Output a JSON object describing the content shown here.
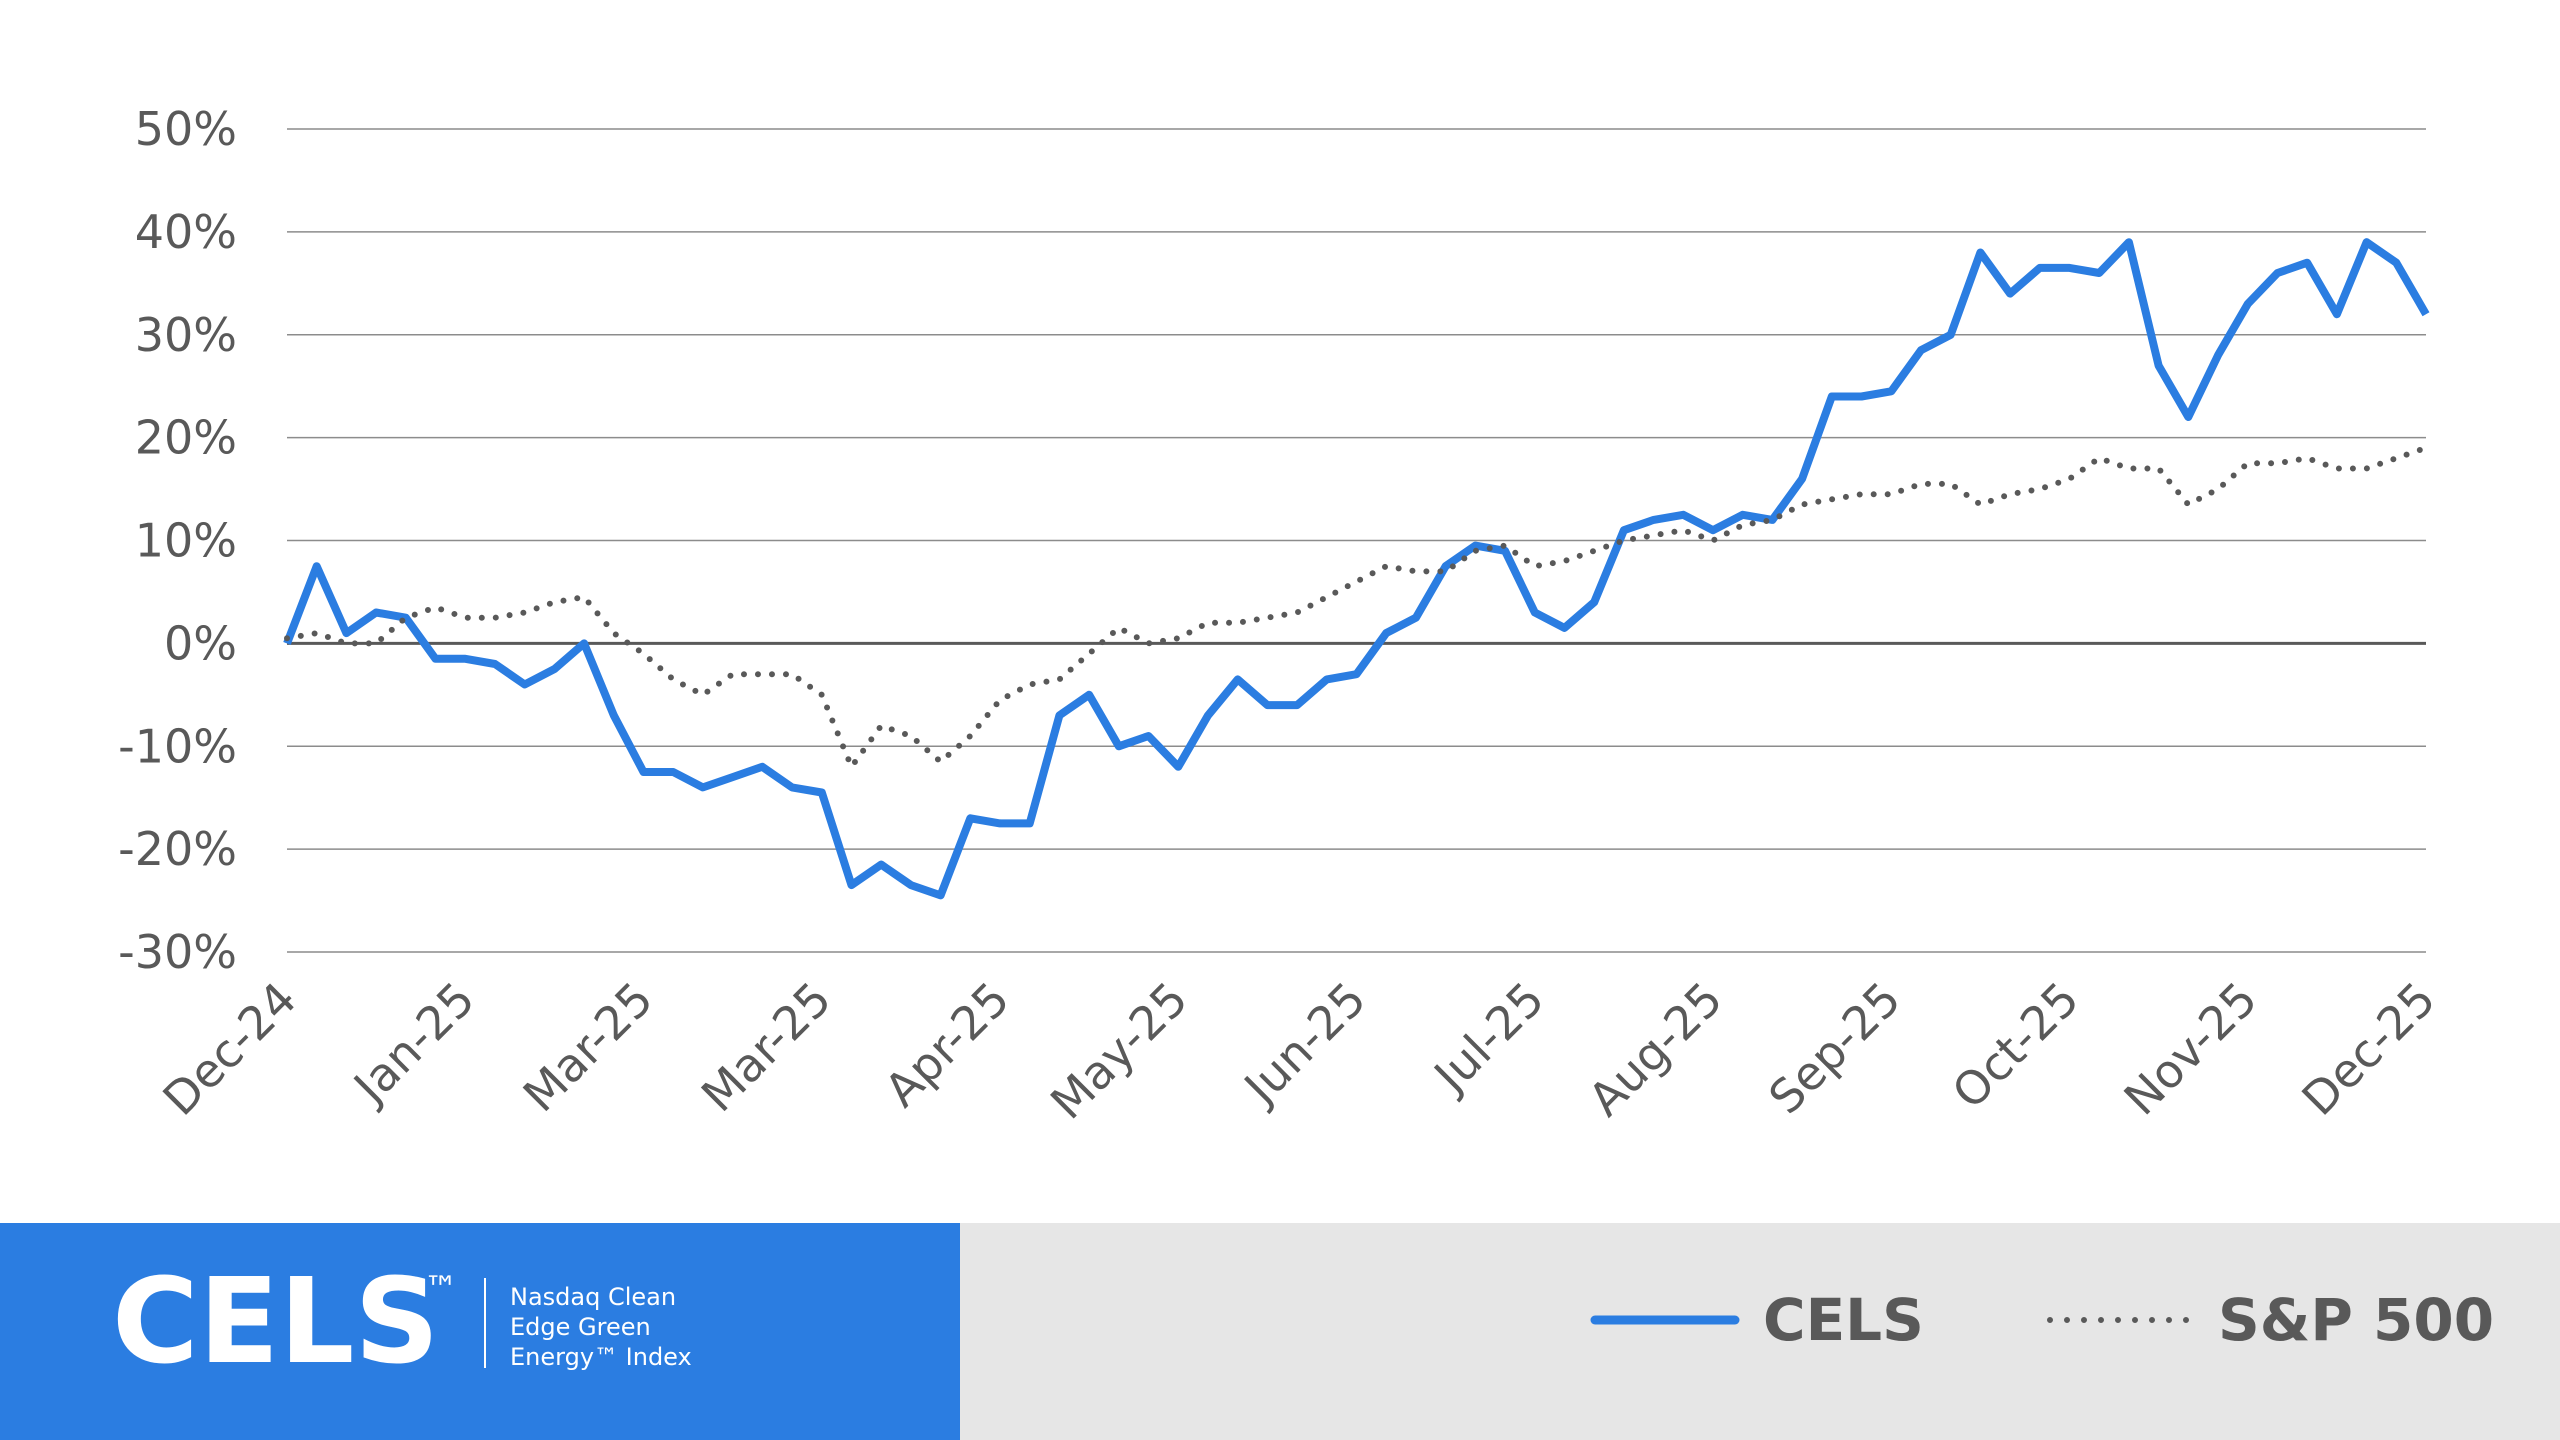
{
  "chart_data": {
    "type": "line",
    "categories": [
      "Dec-24",
      null,
      null,
      null,
      null,
      null,
      "Jan-25",
      null,
      null,
      null,
      null,
      null,
      "Mar-25",
      null,
      null,
      null,
      null,
      null,
      "Mar-25",
      null,
      null,
      null,
      null,
      null,
      "Apr-25",
      null,
      null,
      null,
      null,
      null,
      "May-25",
      null,
      null,
      null,
      null,
      null,
      "Jun-25",
      null,
      null,
      null,
      null,
      null,
      "Jul-25",
      null,
      null,
      null,
      null,
      null,
      "Aug-25",
      null,
      null,
      null,
      null,
      null,
      "Sep-25",
      null,
      null,
      null,
      null,
      null,
      "Oct-25",
      null,
      null,
      null,
      null,
      null,
      "Nov-25",
      null,
      null,
      null,
      null,
      null,
      "Dec-25"
    ],
    "series": [
      {
        "name": "CELS",
        "color": "#2b7de1",
        "style": "solid",
        "values": [
          0,
          7.5,
          1,
          3,
          2.5,
          -1.5,
          -1.5,
          -2,
          -4,
          -2.5,
          0,
          -7,
          -12.5,
          -12.5,
          -14,
          -13,
          -12,
          -14,
          -14.5,
          -23.5,
          -21.5,
          -23.5,
          -24.5,
          -17,
          -17.5,
          -17.5,
          -7,
          -5,
          -10,
          -9,
          -12,
          -7,
          -3.5,
          -6,
          -6,
          -3.5,
          -3,
          1,
          2.5,
          7.5,
          9.5,
          9,
          3,
          1.5,
          4,
          11,
          12,
          12.5,
          11,
          12.5,
          12,
          16,
          24,
          24,
          24.5,
          28.5,
          30,
          38,
          34,
          36.5,
          36.5,
          36,
          39,
          27,
          22,
          28,
          33,
          36,
          37,
          32,
          39,
          37,
          32
        ]
      },
      {
        "name": "S&P 500",
        "color": "#595959",
        "style": "dotted",
        "values": [
          0.5,
          1,
          0,
          0,
          2.5,
          3.5,
          2.5,
          2.5,
          3,
          4,
          4.5,
          1,
          -1,
          -3.5,
          -5,
          -3,
          -3,
          -3,
          -5,
          -12,
          -8,
          -9,
          -11.5,
          -9,
          -5.5,
          -4,
          -3.5,
          -1,
          1.5,
          0,
          0.5,
          2,
          2,
          2.5,
          3,
          4.5,
          6,
          7.5,
          7,
          7,
          9,
          9.5,
          7.5,
          8,
          9,
          10,
          10.5,
          11,
          10,
          11.5,
          12,
          13.5,
          14,
          14.5,
          14.5,
          15.5,
          15.5,
          13.5,
          14.5,
          15,
          16,
          18,
          17,
          17,
          13.5,
          15,
          17.5,
          17.5,
          18,
          17,
          17,
          18,
          19
        ]
      }
    ],
    "ylim": [
      -30,
      50
    ],
    "yticks": [
      {
        "value": -30,
        "label": "-30%"
      },
      {
        "value": -20,
        "label": "-20%"
      },
      {
        "value": -10,
        "label": "-10%"
      },
      {
        "value": 0,
        "label": "0%"
      },
      {
        "value": 10,
        "label": "10%"
      },
      {
        "value": 20,
        "label": "20%"
      },
      {
        "value": 30,
        "label": "30%"
      },
      {
        "value": 40,
        "label": "40%"
      },
      {
        "value": 50,
        "label": "50%"
      }
    ],
    "grid": true
  },
  "footer": {
    "brand": "CELS",
    "trademark": "™",
    "description": [
      "Nasdaq Clean",
      "Edge Green",
      "Energy™ Index"
    ]
  }
}
